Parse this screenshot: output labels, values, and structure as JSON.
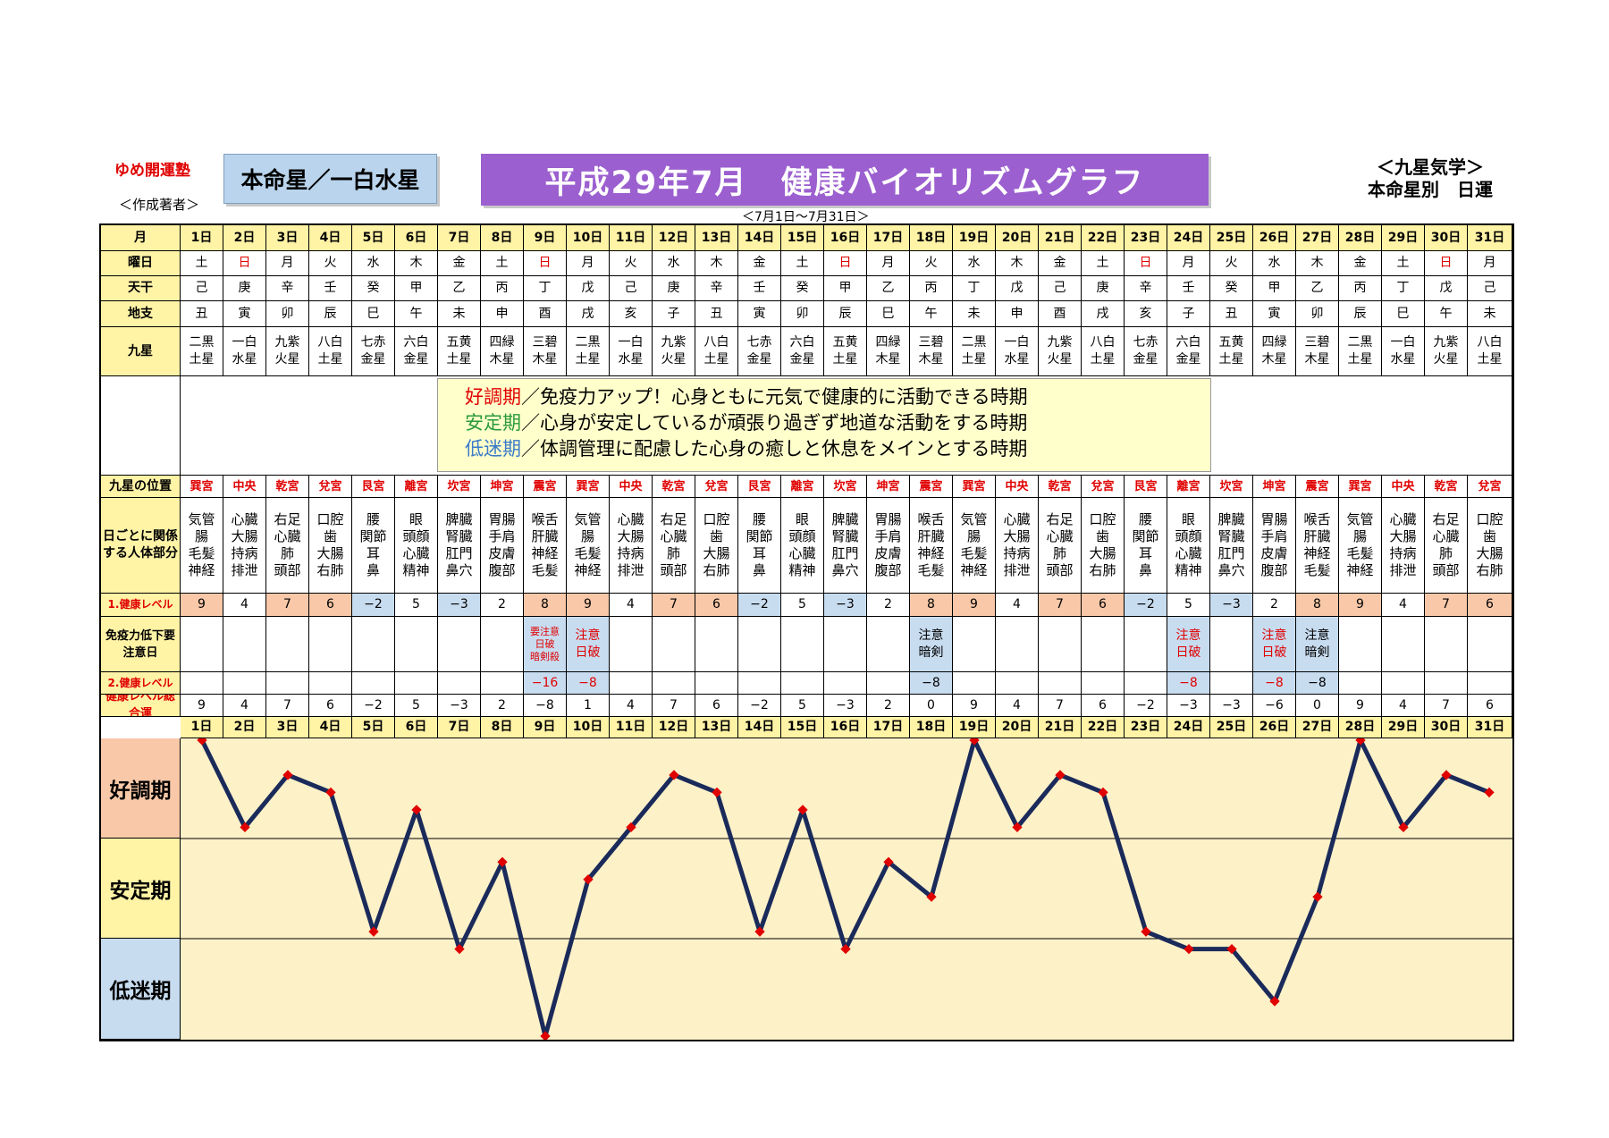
{
  "header": {
    "school": "ゆめ開運塾",
    "author": "＜作成著者＞",
    "honmei": "本命星／一白水星",
    "title": "平成29年7月　健康バイオリズムグラフ",
    "range": "＜7月1日～7月31日＞",
    "kyusei_line1": "＜九星気学＞",
    "kyusei_line2": "本命星別　日運"
  },
  "row_labels": {
    "month": "月",
    "weekday": "曜日",
    "tenkan": "天干",
    "chishi": "地支",
    "kyusei": "九星",
    "position": "九星の位置",
    "body": "日ごとに関係する人体部分",
    "level1": "1.健康レベル",
    "caution": "免疫力低下要注意日",
    "level2": "2.健康レベル",
    "total": "健康レベル総合運"
  },
  "legend": {
    "l1_term": "好調期",
    "l1_text": "／免疫力アップ！心身ともに元気で健康的に活動できる時期",
    "l2_term": "安定期",
    "l2_text": "／心身が安定しているが頑張り過ぎず地道な活動をする時期",
    "l3_term": "低迷期",
    "l3_text": "／体調管理に配慮した心身の癒しと休息をメインとする時期"
  },
  "colors": {
    "good": "#e00000",
    "stable": "#2a9a3a",
    "low": "#3a7ac8",
    "line": "#1a2a5a",
    "marker": "#e00000"
  },
  "days": [
    "1日",
    "2日",
    "3日",
    "4日",
    "5日",
    "6日",
    "7日",
    "8日",
    "9日",
    "10日",
    "11日",
    "12日",
    "13日",
    "14日",
    "15日",
    "16日",
    "17日",
    "18日",
    "19日",
    "20日",
    "21日",
    "22日",
    "23日",
    "24日",
    "25日",
    "26日",
    "27日",
    "28日",
    "29日",
    "30日",
    "31日"
  ],
  "weekdays": [
    "土",
    "日",
    "月",
    "火",
    "水",
    "木",
    "金",
    "土",
    "日",
    "月",
    "火",
    "水",
    "木",
    "金",
    "土",
    "日",
    "月",
    "火",
    "水",
    "木",
    "金",
    "土",
    "日",
    "月",
    "火",
    "水",
    "木",
    "金",
    "土",
    "日",
    "月"
  ],
  "sunday_idx": [
    1,
    8,
    15,
    22,
    29
  ],
  "tenkan": [
    "己",
    "庚",
    "辛",
    "壬",
    "癸",
    "甲",
    "乙",
    "丙",
    "丁",
    "戊",
    "己",
    "庚",
    "辛",
    "壬",
    "癸",
    "甲",
    "乙",
    "丙",
    "丁",
    "戊",
    "己",
    "庚",
    "辛",
    "壬",
    "癸",
    "甲",
    "乙",
    "丙",
    "丁",
    "戊",
    "己"
  ],
  "chishi": [
    "丑",
    "寅",
    "卯",
    "辰",
    "巳",
    "午",
    "未",
    "申",
    "酉",
    "戌",
    "亥",
    "子",
    "丑",
    "寅",
    "卯",
    "辰",
    "巳",
    "午",
    "未",
    "申",
    "酉",
    "戌",
    "亥",
    "子",
    "丑",
    "寅",
    "卯",
    "辰",
    "巳",
    "午",
    "未"
  ],
  "kyusei": [
    "二黒土星",
    "一白水星",
    "九紫火星",
    "八白土星",
    "七赤金星",
    "六白金星",
    "五黄土星",
    "四緑木星",
    "三碧木星",
    "二黒土星",
    "一白水星",
    "九紫火星",
    "八白土星",
    "七赤金星",
    "六白金星",
    "五黄土星",
    "四緑木星",
    "三碧木星",
    "二黒土星",
    "一白水星",
    "九紫火星",
    "八白土星",
    "七赤金星",
    "六白金星",
    "五黄土星",
    "四緑木星",
    "三碧木星",
    "二黒土星",
    "一白水星",
    "九紫火星",
    "八白土星"
  ],
  "positions": [
    "巽宮",
    "中央",
    "乾宮",
    "兌宮",
    "艮宮",
    "離宮",
    "坎宮",
    "坤宮",
    "震宮",
    "巽宮",
    "中央",
    "乾宮",
    "兌宮",
    "艮宮",
    "離宮",
    "坎宮",
    "坤宮",
    "震宮",
    "巽宮",
    "中央",
    "乾宮",
    "兌宮",
    "艮宮",
    "離宮",
    "坎宮",
    "坤宮",
    "震宮",
    "巽宮",
    "中央",
    "乾宮",
    "兌宮"
  ],
  "body": [
    "気管腸毛髪神経",
    "心臓大腸持病排泄",
    "右足心臓肺頭部",
    "口腔歯大腸右肺",
    "腰関節耳鼻",
    "眼頭顔心臓精神",
    "脾臓腎臓肛門鼻穴",
    "胃腸手肩皮膚腹部",
    "喉舌肝臓神経毛髪",
    "気管腸毛髪神経",
    "心臓大腸持病排泄",
    "右足心臓肺頭部",
    "口腔歯大腸右肺",
    "腰関節耳鼻",
    "眼頭顔心臓精神",
    "脾臓腎臓肛門鼻穴",
    "胃腸手肩皮膚腹部",
    "喉舌肝臓神経毛髪",
    "気管腸毛髪神経",
    "心臓大腸持病排泄",
    "右足心臓肺頭部",
    "口腔歯大腸右肺",
    "腰関節耳鼻",
    "眼頭顔心臓精神",
    "脾臓腎臓肛門鼻穴",
    "胃腸手肩皮膚腹部",
    "喉舌肝臓神経毛髪",
    "気管腸毛髪神経",
    "心臓大腸持病排泄",
    "右足心臓肺頭部",
    "口腔歯大腸右肺"
  ],
  "level1": [
    9,
    4,
    7,
    6,
    -2,
    5,
    -3,
    2,
    8,
    9,
    4,
    7,
    6,
    -2,
    5,
    -3,
    2,
    8,
    9,
    4,
    7,
    6,
    -2,
    5,
    -3,
    2,
    8,
    9,
    4,
    7,
    6
  ],
  "caution": [
    "",
    "",
    "",
    "",
    "",
    "",
    "",
    "",
    "要注意|日破|暗剣殺",
    "注意|日破",
    "",
    "",
    "",
    "",
    "",
    "",
    "",
    "注意|暗剣",
    "",
    "",
    "",
    "",
    "",
    "注意|日破",
    "",
    "注意|日破",
    "注意|暗剣",
    "",
    "",
    "",
    ""
  ],
  "caution_red": [
    8,
    9,
    23,
    25
  ],
  "level2": [
    "",
    "",
    "",
    "",
    "",
    "",
    "",
    "",
    "−16",
    "−8",
    "",
    "",
    "",
    "",
    "",
    "",
    "",
    "−8",
    "",
    "",
    "",
    "",
    "",
    "−8",
    "",
    "−8",
    "−8",
    "",
    "",
    "",
    ""
  ],
  "level2_red": [
    8,
    9,
    23,
    25
  ],
  "total": [
    9,
    4,
    7,
    6,
    -2,
    5,
    -3,
    2,
    -8,
    1,
    4,
    7,
    6,
    -2,
    5,
    -3,
    2,
    0,
    9,
    4,
    7,
    6,
    -2,
    -3,
    -3,
    -6,
    0,
    9,
    4,
    7,
    6
  ],
  "bands": {
    "good": "好調期",
    "stable": "安定期",
    "low": "低迷期"
  },
  "chart_data": {
    "type": "line",
    "categories": [
      "1日",
      "2日",
      "3日",
      "4日",
      "5日",
      "6日",
      "7日",
      "8日",
      "9日",
      "10日",
      "11日",
      "12日",
      "13日",
      "14日",
      "15日",
      "16日",
      "17日",
      "18日",
      "19日",
      "20日",
      "21日",
      "22日",
      "23日",
      "24日",
      "25日",
      "26日",
      "27日",
      "28日",
      "29日",
      "30日",
      "31日"
    ],
    "values": [
      9,
      4,
      7,
      6,
      -2,
      5,
      -3,
      2,
      -8,
      1,
      4,
      7,
      6,
      -2,
      5,
      -3,
      2,
      0,
      9,
      4,
      7,
      6,
      -2,
      -3,
      -3,
      -6,
      0,
      9,
      4,
      7,
      6
    ],
    "ylim": [
      -8,
      9
    ],
    "bands": [
      "好調期",
      "安定期",
      "低迷期"
    ]
  }
}
